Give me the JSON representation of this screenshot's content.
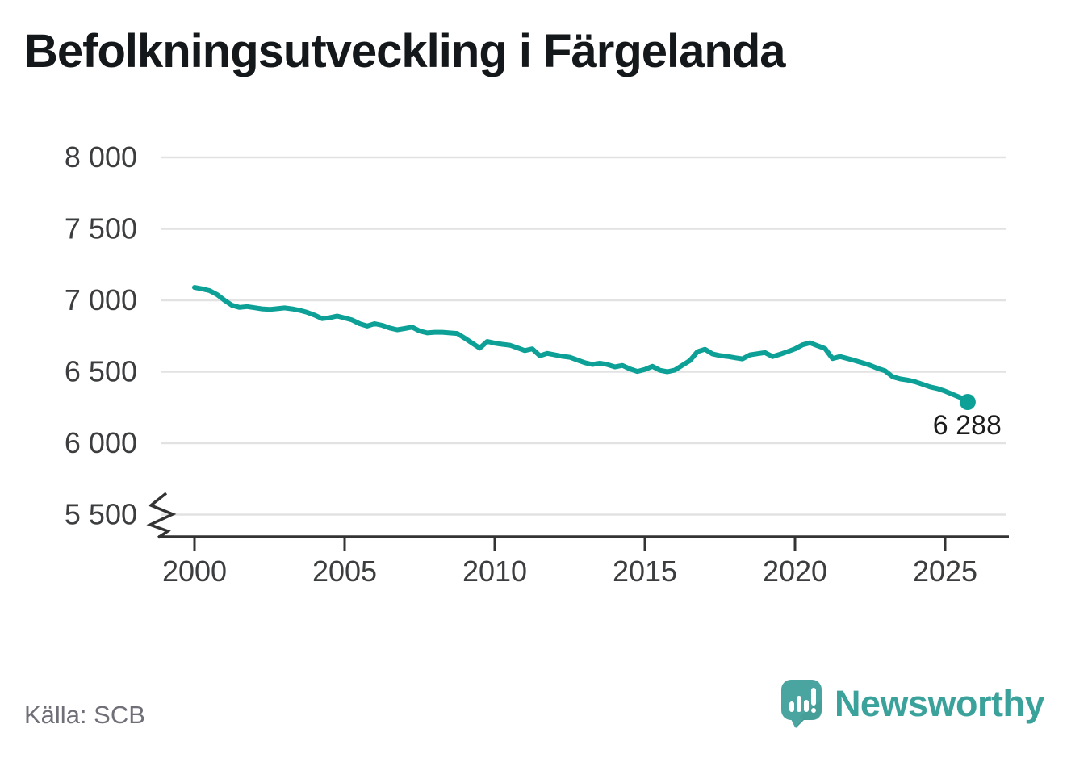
{
  "chart_data": {
    "type": "line",
    "title": "Befolkningsutveckling i Färgelanda",
    "source": "Källa: SCB",
    "x_ticks": [
      2000,
      2005,
      2010,
      2015,
      2020,
      2025
    ],
    "y_ticks": [
      8000,
      7500,
      7000,
      6500,
      6000,
      5500
    ],
    "y_tick_labels": [
      "8 000",
      "7 500",
      "7 000",
      "6 500",
      "6 000",
      "5 500"
    ],
    "x_range": [
      2000,
      2025
    ],
    "y_range": [
      5500,
      8000
    ],
    "axis_break": true,
    "grid": true,
    "end_label": "6 288",
    "end_value": 6288,
    "points": [
      [
        2000.0,
        7090
      ],
      [
        2000.25,
        7080
      ],
      [
        2000.5,
        7068
      ],
      [
        2000.75,
        7040
      ],
      [
        2001.0,
        7000
      ],
      [
        2001.25,
        6965
      ],
      [
        2001.5,
        6950
      ],
      [
        2001.75,
        6956
      ],
      [
        2002.0,
        6948
      ],
      [
        2002.25,
        6940
      ],
      [
        2002.5,
        6936
      ],
      [
        2002.75,
        6941
      ],
      [
        2003.0,
        6947
      ],
      [
        2003.25,
        6940
      ],
      [
        2003.5,
        6930
      ],
      [
        2003.75,
        6916
      ],
      [
        2004.0,
        6896
      ],
      [
        2004.25,
        6872
      ],
      [
        2004.5,
        6878
      ],
      [
        2004.75,
        6890
      ],
      [
        2005.0,
        6876
      ],
      [
        2005.25,
        6862
      ],
      [
        2005.5,
        6836
      ],
      [
        2005.75,
        6820
      ],
      [
        2006.0,
        6836
      ],
      [
        2006.25,
        6825
      ],
      [
        2006.5,
        6806
      ],
      [
        2006.75,
        6794
      ],
      [
        2007.0,
        6802
      ],
      [
        2007.25,
        6812
      ],
      [
        2007.5,
        6785
      ],
      [
        2007.75,
        6772
      ],
      [
        2008.0,
        6776
      ],
      [
        2008.25,
        6776
      ],
      [
        2008.5,
        6772
      ],
      [
        2008.75,
        6768
      ],
      [
        2009.0,
        6735
      ],
      [
        2009.25,
        6700
      ],
      [
        2009.5,
        6665
      ],
      [
        2009.75,
        6712
      ],
      [
        2010.0,
        6700
      ],
      [
        2010.25,
        6692
      ],
      [
        2010.5,
        6686
      ],
      [
        2010.75,
        6668
      ],
      [
        2011.0,
        6648
      ],
      [
        2011.25,
        6660
      ],
      [
        2011.5,
        6612
      ],
      [
        2011.75,
        6628
      ],
      [
        2012.0,
        6618
      ],
      [
        2012.25,
        6608
      ],
      [
        2012.5,
        6601
      ],
      [
        2012.75,
        6582
      ],
      [
        2013.0,
        6563
      ],
      [
        2013.25,
        6551
      ],
      [
        2013.5,
        6560
      ],
      [
        2013.75,
        6550
      ],
      [
        2014.0,
        6534
      ],
      [
        2014.25,
        6544
      ],
      [
        2014.5,
        6520
      ],
      [
        2014.75,
        6502
      ],
      [
        2015.0,
        6516
      ],
      [
        2015.25,
        6538
      ],
      [
        2015.5,
        6510
      ],
      [
        2015.75,
        6500
      ],
      [
        2016.0,
        6512
      ],
      [
        2016.25,
        6545
      ],
      [
        2016.5,
        6578
      ],
      [
        2016.75,
        6640
      ],
      [
        2017.0,
        6657
      ],
      [
        2017.25,
        6625
      ],
      [
        2017.5,
        6613
      ],
      [
        2017.75,
        6607
      ],
      [
        2018.0,
        6598
      ],
      [
        2018.25,
        6590
      ],
      [
        2018.5,
        6618
      ],
      [
        2018.75,
        6626
      ],
      [
        2019.0,
        6634
      ],
      [
        2019.25,
        6606
      ],
      [
        2019.5,
        6622
      ],
      [
        2019.75,
        6640
      ],
      [
        2020.0,
        6660
      ],
      [
        2020.25,
        6688
      ],
      [
        2020.5,
        6702
      ],
      [
        2020.75,
        6682
      ],
      [
        2021.0,
        6662
      ],
      [
        2021.25,
        6592
      ],
      [
        2021.5,
        6606
      ],
      [
        2021.75,
        6592
      ],
      [
        2022.0,
        6578
      ],
      [
        2022.25,
        6562
      ],
      [
        2022.5,
        6545
      ],
      [
        2022.75,
        6524
      ],
      [
        2023.0,
        6506
      ],
      [
        2023.25,
        6465
      ],
      [
        2023.5,
        6450
      ],
      [
        2023.75,
        6442
      ],
      [
        2024.0,
        6430
      ],
      [
        2024.25,
        6412
      ],
      [
        2024.5,
        6394
      ],
      [
        2024.75,
        6382
      ],
      [
        2025.0,
        6364
      ],
      [
        2025.25,
        6342
      ],
      [
        2025.5,
        6320
      ],
      [
        2025.75,
        6288
      ]
    ],
    "colors": {
      "line": "#0da096",
      "grid": "#e2e2e2",
      "axis": "#333333",
      "tick_text": "#3b3d3f",
      "end_label_text": "#1c1c1c"
    }
  },
  "branding": {
    "wordmark": "Newsworthy",
    "icon": "speech-bubble-bar-chart-icon",
    "icon_color": "#4aa5a0",
    "wordmark_color": "#3ba29b"
  }
}
